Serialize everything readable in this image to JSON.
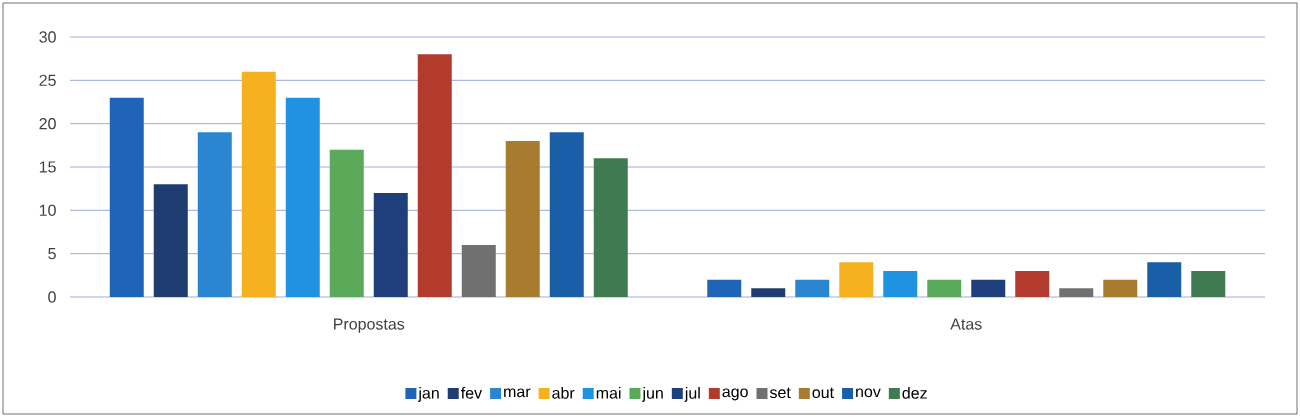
{
  "chart_data": {
    "type": "bar",
    "categories": [
      "Propostas",
      "Atas"
    ],
    "series": [
      {
        "name": "jan",
        "color": "#2064b8",
        "values": [
          23,
          2
        ]
      },
      {
        "name": "fev",
        "color": "#203d72",
        "values": [
          13,
          1
        ]
      },
      {
        "name": "mar",
        "color": "#2a86d0",
        "values": [
          19,
          2
        ]
      },
      {
        "name": "abr",
        "color": "#f5b120",
        "values": [
          26,
          4
        ]
      },
      {
        "name": "mai",
        "color": "#1f93e2",
        "values": [
          23,
          3
        ]
      },
      {
        "name": "jun",
        "color": "#5aaa5a",
        "values": [
          17,
          2
        ]
      },
      {
        "name": "jul",
        "color": "#1e3f7c",
        "values": [
          12,
          2
        ]
      },
      {
        "name": "ago",
        "color": "#b23b2e",
        "values": [
          28,
          3
        ]
      },
      {
        "name": "set",
        "color": "#707070",
        "values": [
          6,
          1
        ]
      },
      {
        "name": "out",
        "color": "#a87c2e",
        "values": [
          18,
          2
        ]
      },
      {
        "name": "nov",
        "color": "#1b5ea8",
        "values": [
          19,
          4
        ]
      },
      {
        "name": "dez",
        "color": "#3f7a50",
        "values": [
          16,
          3
        ]
      }
    ],
    "ylim": [
      0,
      30
    ],
    "yticks": [
      0,
      5,
      10,
      15,
      20,
      25,
      30
    ],
    "grid": "y",
    "legend": "bottom"
  }
}
